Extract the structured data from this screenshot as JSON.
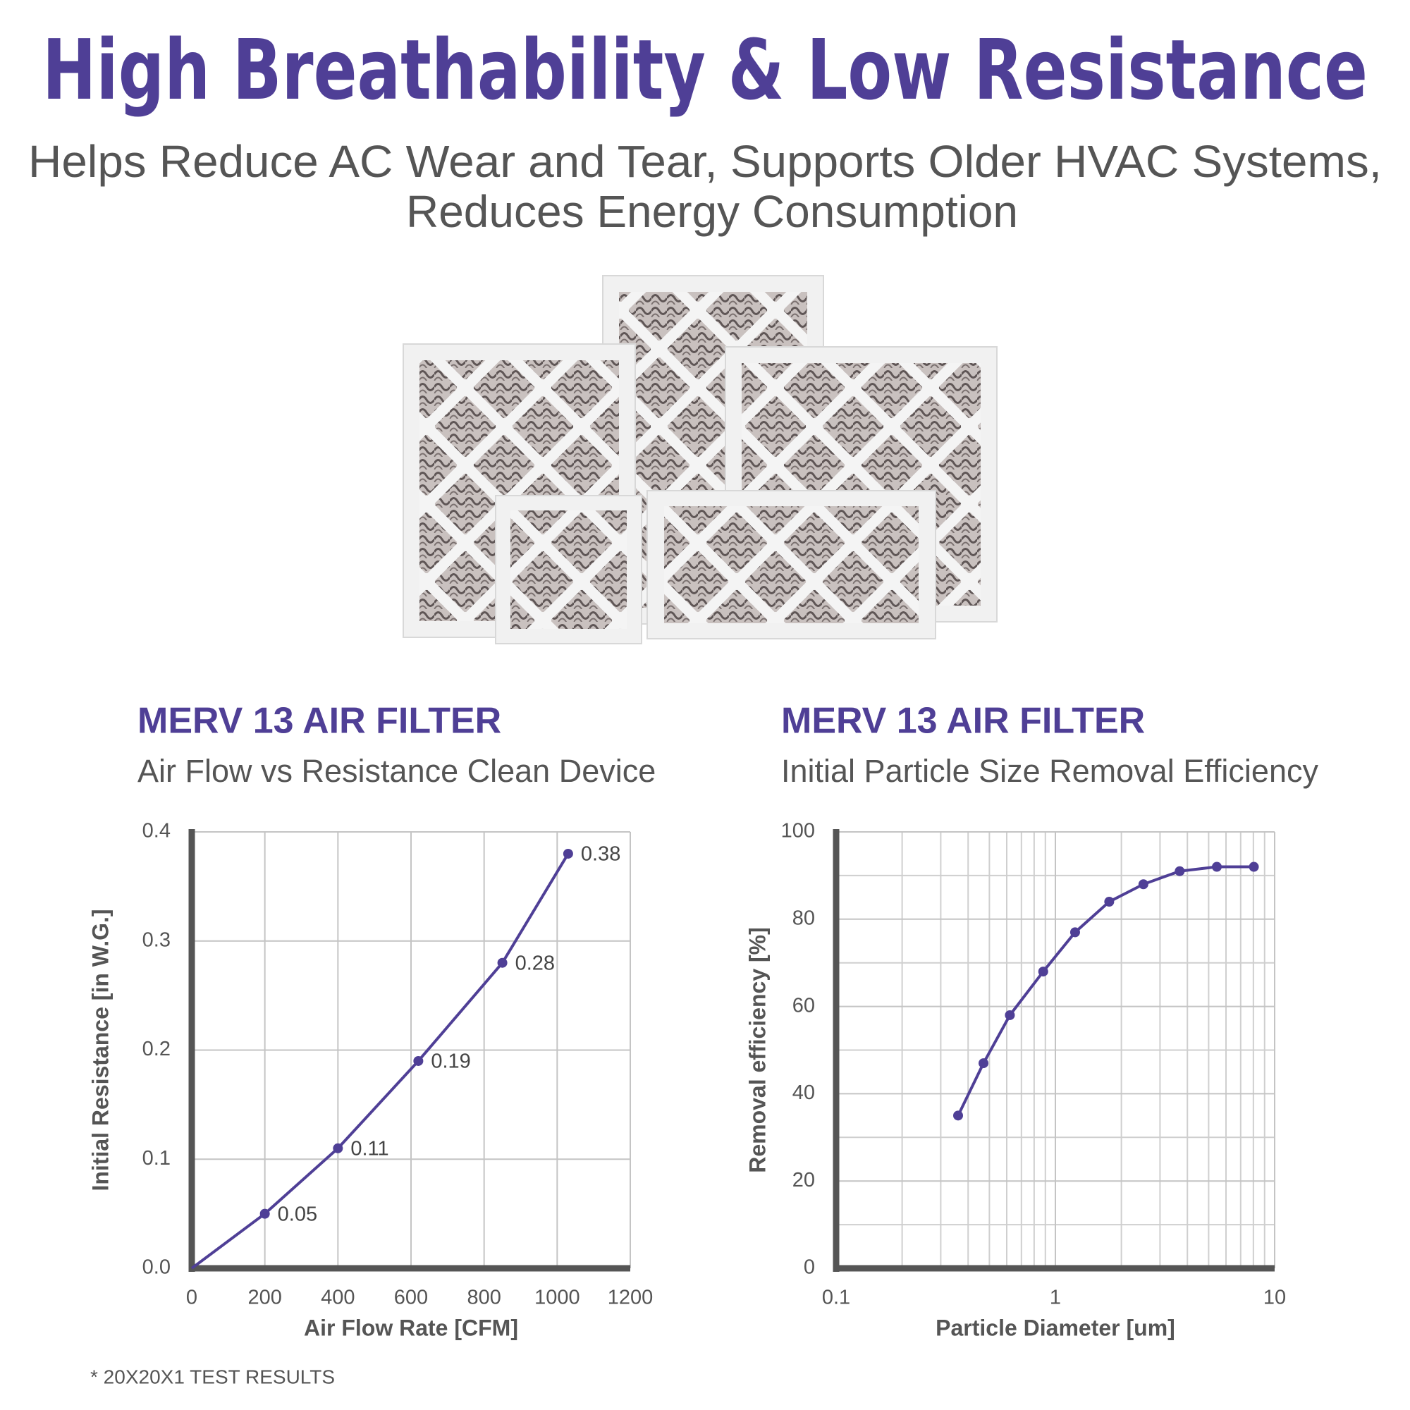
{
  "title": "High Breathability & Low Resistance",
  "subtitle": [
    "Helps Reduce AC Wear and Tear, Supports Older HVAC Systems,",
    "Reduces Energy Consumption"
  ],
  "footnote": "*  20X20X1 TEST RESULTS",
  "chart_data": [
    {
      "type": "line",
      "title": "MERV 13 AIR FILTER",
      "subtitle": "Air Flow vs Resistance Clean Device",
      "x_label": "Air Flow Rate [CFM]",
      "y_label": "Initial Resistance [in W.G.]",
      "x": [
        0,
        200,
        400,
        620,
        850,
        1030
      ],
      "series": [
        {
          "name": "MERV 13",
          "color": "#4f3f96",
          "values": [
            0,
            0.05,
            0.11,
            0.19,
            0.28,
            0.38
          ],
          "value_labels": [
            null,
            "0.05",
            "0.11",
            "0.19",
            "0.28",
            "0.38"
          ]
        }
      ],
      "xlim": [
        0,
        1200
      ],
      "xticks": [
        0,
        200,
        400,
        600,
        800,
        1000,
        1200
      ],
      "ylim": [
        0,
        0.4
      ],
      "yticks": [
        {
          "value": 0,
          "label": "0.0"
        },
        0.1,
        0.2,
        0.3,
        0.4
      ],
      "grid": true,
      "log_x": false
    },
    {
      "type": "line",
      "title": "MERV 13 AIR FILTER",
      "subtitle": "Initial Particle Size Removal Efficiency",
      "x_label": "Particle Diameter [um]",
      "y_label": "Removal efficiency [%]",
      "x": [
        0.36,
        0.47,
        0.62,
        0.88,
        1.23,
        1.76,
        2.52,
        3.69,
        5.45,
        8.04
      ],
      "series": [
        {
          "name": "MERV 13",
          "color": "#4f3f96",
          "values": [
            35,
            47,
            58,
            68,
            77,
            84,
            88,
            91,
            92,
            92
          ]
        }
      ],
      "xlim": [
        0.1,
        10
      ],
      "xticks": [
        0.1,
        1,
        10
      ],
      "xticks_minor": [
        0.2,
        0.3,
        0.4,
        0.5,
        0.6,
        0.7,
        0.8,
        0.9,
        2,
        3,
        4,
        5,
        6,
        7,
        8,
        9
      ],
      "ylim": [
        0,
        100
      ],
      "yticks": [
        0,
        20,
        40,
        60,
        80,
        100
      ],
      "yticks_minor": [
        10,
        30,
        50,
        70,
        90
      ],
      "grid": true,
      "log_x": true
    }
  ]
}
